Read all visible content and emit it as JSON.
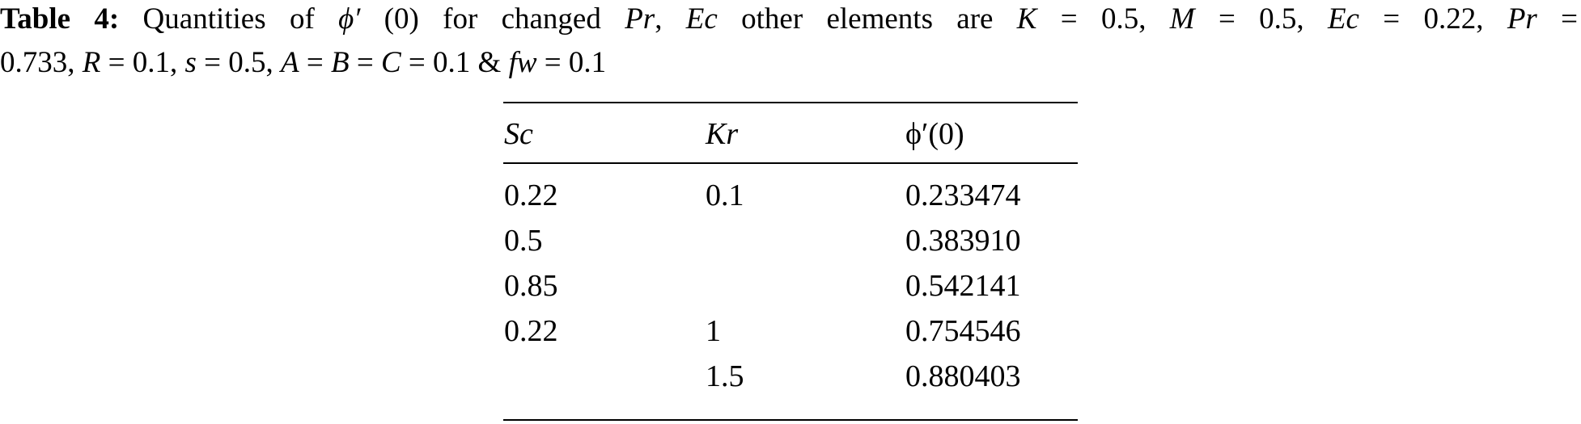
{
  "caption": {
    "label": "Table 4:",
    "line1_parts": [
      "Quantities of ",
      "ϕ′",
      " (0) for changed ",
      "Pr",
      ", ",
      "Ec",
      " other elements are ",
      "K",
      " = 0.5, ",
      "M",
      " = 0.5, ",
      "Ec",
      " = 0.22, ",
      "Pr",
      " ="
    ],
    "line2_parts": [
      "0.733, ",
      "R",
      " = 0.1, ",
      "s",
      " = 0.5, ",
      "A",
      " = ",
      "B",
      " = ",
      "C",
      " = 0.1 & ",
      "fw",
      " = 0.1"
    ]
  },
  "table": {
    "headers": [
      "Sc",
      "Kr",
      "ϕ′(0)"
    ],
    "rows": [
      [
        "0.22",
        "0.1",
        "0.233474"
      ],
      [
        "0.5",
        "",
        "0.383910"
      ],
      [
        "0.85",
        "",
        "0.542141"
      ],
      [
        "0.22",
        "1",
        "0.754546"
      ],
      [
        "",
        "1.5",
        "0.880403"
      ]
    ]
  }
}
